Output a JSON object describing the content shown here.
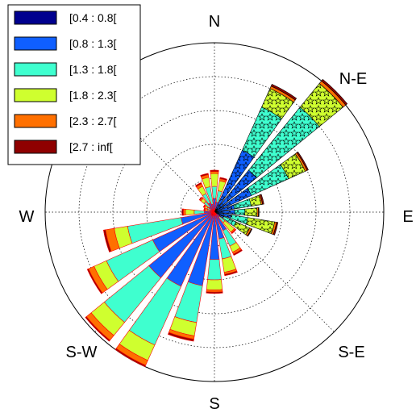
{
  "chart_data": {
    "type": "windrose",
    "directions": [
      "N",
      "N-E",
      "E",
      "S-E",
      "S",
      "S-W",
      "W"
    ],
    "legend_position": "top-left",
    "grid": true,
    "bins": [
      {
        "label": "[0.4 : 0.8[",
        "color": "#00008f"
      },
      {
        "label": "[0.8 : 1.3[",
        "color": "#0f5fff"
      },
      {
        "label": "[1.3 : 1.8[",
        "color": "#3fffcf"
      },
      {
        "label": "[1.8 : 2.3[",
        "color": "#cfff2f"
      },
      {
        "label": "[2.3 : 2.7[",
        "color": "#ff7000"
      },
      {
        "label": "[2.7 : inf[",
        "color": "#8f0000"
      }
    ],
    "max_frequency": 25,
    "grid_rings": [
      5,
      10,
      15,
      20,
      25
    ],
    "sectors": [
      {
        "angle": 0,
        "cumulative": [
          0.4,
          2.0,
          3.8,
          5.7,
          6.0,
          6.2
        ],
        "stars": false
      },
      {
        "angle": 15,
        "cumulative": [
          0.3,
          1.5,
          3.2,
          4.7,
          5.0,
          5.2
        ],
        "stars": false
      },
      {
        "angle": 30,
        "cumulative": [
          0.5,
          10.0,
          17.0,
          20.0,
          20.4,
          20.7
        ],
        "stars": true
      },
      {
        "angle": 45,
        "cumulative": [
          0.6,
          8.0,
          20.0,
          24.5,
          25.0,
          25.3
        ],
        "stars": true
      },
      {
        "angle": 60,
        "cumulative": [
          0.4,
          6.0,
          12.0,
          14.7,
          15.0,
          15.2
        ],
        "stars": true
      },
      {
        "angle": 75,
        "cumulative": [
          0.3,
          3.0,
          5.5,
          7.0,
          7.2,
          7.4
        ],
        "stars": true
      },
      {
        "angle": 90,
        "cumulative": [
          0.2,
          3.0,
          4.5,
          6.3,
          6.5,
          6.6
        ],
        "stars": true
      },
      {
        "angle": 105,
        "cumulative": [
          0.2,
          2.5,
          5.0,
          9.0,
          9.3,
          9.5
        ],
        "stars": true
      },
      {
        "angle": 120,
        "cumulative": [
          0.2,
          1.5,
          3.5,
          5.7,
          6.0,
          6.1
        ],
        "stars": true
      },
      {
        "angle": 135,
        "cumulative": [
          0.2,
          1.0,
          2.0,
          3.8,
          4.0,
          4.1
        ],
        "stars": false
      },
      {
        "angle": 150,
        "cumulative": [
          0.3,
          3.0,
          5.5,
          6.5,
          6.8,
          7.0
        ],
        "stars": false
      },
      {
        "angle": 165,
        "cumulative": [
          0.4,
          4.0,
          7.0,
          9.0,
          9.3,
          9.5
        ],
        "stars": false
      },
      {
        "angle": 180,
        "cumulative": [
          0.4,
          7.0,
          10.0,
          11.5,
          11.8,
          12.0
        ],
        "stars": false
      },
      {
        "angle": 195,
        "cumulative": [
          0.5,
          11.0,
          16.5,
          18.5,
          19.0,
          19.3
        ],
        "stars": false
      },
      {
        "angle": 210,
        "cumulative": [
          0.6,
          12.0,
          21.5,
          24.0,
          24.8,
          25.0
        ],
        "stars": false
      },
      {
        "angle": 225,
        "cumulative": [
          0.6,
          12.5,
          21.0,
          23.5,
          24.4,
          24.6
        ],
        "stars": false
      },
      {
        "angle": 240,
        "cumulative": [
          0.5,
          10.0,
          17.5,
          19.5,
          20.4,
          20.6
        ],
        "stars": false
      },
      {
        "angle": 255,
        "cumulative": [
          0.4,
          5.0,
          13.0,
          15.0,
          16.3,
          16.6
        ],
        "stars": false
      },
      {
        "angle": 270,
        "cumulative": [
          0.3,
          1.5,
          3.0,
          4.3,
          4.6,
          4.8
        ],
        "stars": false
      },
      {
        "angle": 285,
        "cumulative": [
          0.2,
          0.7,
          1.1,
          1.4,
          1.5,
          1.6
        ],
        "stars": false
      },
      {
        "angle": 300,
        "cumulative": [
          0.2,
          0.6,
          1.2,
          1.6,
          1.7,
          1.8
        ],
        "stars": false
      },
      {
        "angle": 315,
        "cumulative": [
          0.3,
          1.0,
          2.0,
          2.6,
          2.8,
          2.9
        ],
        "stars": false
      },
      {
        "angle": 330,
        "cumulative": [
          0.3,
          1.5,
          3.0,
          4.2,
          4.6,
          4.8
        ],
        "stars": false
      },
      {
        "angle": 345,
        "cumulative": [
          0.3,
          1.2,
          3.8,
          5.2,
          5.6,
          5.8
        ],
        "stars": false
      }
    ]
  }
}
